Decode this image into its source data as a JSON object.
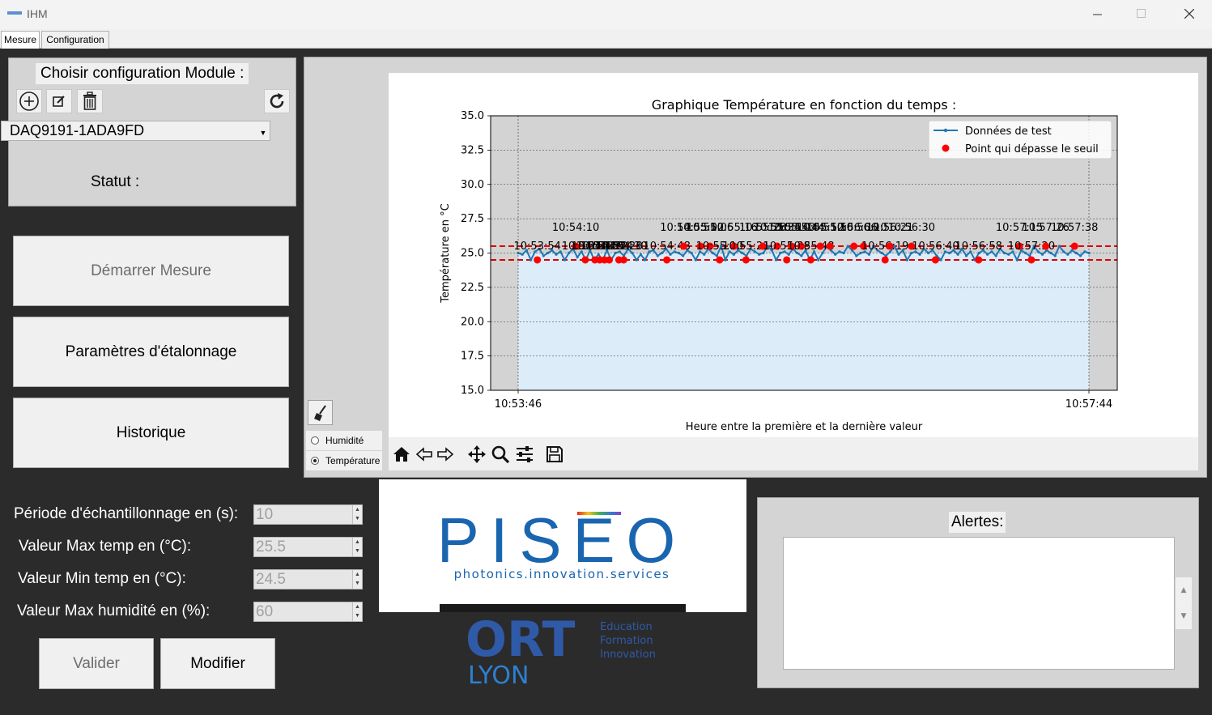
{
  "window": {
    "title": "IHM"
  },
  "tabs": [
    {
      "label": "Mesure"
    },
    {
      "label": "Configuration"
    }
  ],
  "config": {
    "title": "Choisir configuration Module :",
    "selected_module": "DAQ9191-1ADA9FD",
    "status_label": "Statut :"
  },
  "buttons": {
    "start": "Démarrer Mesure",
    "calibration": "Paramètres d'étalonnage",
    "history": "Historique",
    "validate": "Valider",
    "modify": "Modifier"
  },
  "params": [
    {
      "label": "Période d'échantillonnage en (s):",
      "value": "10"
    },
    {
      "label": "Valeur Max temp en (°C):",
      "value": "25.5"
    },
    {
      "label": "Valeur Min temp en (°C):",
      "value": "24.5"
    },
    {
      "label": "Valeur Max humidité en (%):",
      "value": "60"
    }
  ],
  "radios": [
    {
      "label": "Humidité",
      "checked": false
    },
    {
      "label": "Température",
      "checked": true
    }
  ],
  "alerts": {
    "title": "Alertes:",
    "text": ""
  },
  "logos": {
    "piseo_name": "PISEO",
    "piseo_tagline": "photonics.innovation.services",
    "ort_name": "ORT",
    "ort_city": "LYON",
    "ort_line1": "Education",
    "ort_line2": "Formation",
    "ort_line3": "Innovation"
  },
  "colors": {
    "series": "#1f77b4",
    "exceed": "#ff0000",
    "threshold": "#e00000",
    "fill": "#dcecf9",
    "piseo_blue": "#1a65b0",
    "ort_blue": "#2f5aa8"
  },
  "chart_data": {
    "type": "line",
    "title": "Graphique Température en fonction du temps :",
    "xlabel": "Heure entre la première et la dernière valeur",
    "ylabel": "Température en °C",
    "ylim": [
      15.0,
      35.0
    ],
    "xlim": [
      "10:53:46",
      "10:57:44"
    ],
    "x_tick_labels": [
      "10:53:46",
      "10:57:44"
    ],
    "y_ticks": [
      15.0,
      17.5,
      20.0,
      22.5,
      25.0,
      27.5,
      30.0,
      32.5,
      35.0
    ],
    "y_tick_labels": [
      "15.0",
      "17.5",
      "20.0",
      "22.5",
      "25.0",
      "27.5",
      "30.0",
      "32.5",
      "35.0"
    ],
    "grid": true,
    "legend_position": "top-right",
    "thresholds": [
      25.5,
      24.5
    ],
    "series": [
      {
        "name": "Données de test",
        "values": [
          25.0,
          24.9,
          25.2,
          24.5,
          25.1,
          25.3,
          24.8,
          25.0,
          25.2,
          24.9,
          25.1,
          24.5,
          25.0,
          25.3,
          24.7,
          25.1,
          24.5,
          25.2,
          24.5,
          24.9,
          24.5,
          25.2,
          24.5,
          25.0,
          25.1,
          24.8,
          25.3,
          25.0,
          24.5,
          24.9,
          24.5,
          25.1,
          25.2,
          24.8,
          25.0,
          25.3,
          24.9,
          25.1,
          25.0,
          24.8,
          25.2,
          25.0,
          24.5,
          25.1,
          24.9,
          25.3,
          25.0,
          24.8,
          25.5,
          24.5,
          25.1,
          24.9,
          25.2,
          25.0,
          24.8,
          25.3,
          25.1,
          24.9,
          25.0,
          25.5,
          25.2,
          24.5,
          25.0,
          25.1,
          24.9,
          25.3,
          25.0,
          24.8,
          25.2,
          24.5,
          25.1,
          24.5,
          25.0,
          25.5,
          25.2,
          24.9,
          25.1,
          25.0,
          25.5,
          25.2,
          24.8,
          25.0,
          25.1,
          24.9,
          25.5,
          25.2,
          25.0,
          24.8,
          25.1,
          25.5,
          24.9,
          25.2,
          24.5,
          25.0,
          25.1,
          24.9,
          25.3,
          25.0,
          25.2,
          24.8,
          24.5,
          25.1,
          25.0,
          25.2,
          24.9,
          25.3,
          24.8,
          25.1,
          24.5,
          25.0,
          25.2,
          24.9,
          25.1,
          24.8,
          25.3,
          25.0,
          24.9,
          25.1,
          24.5,
          25.2,
          25.0,
          24.8,
          25.5,
          25.1,
          24.9,
          25.2,
          25.0,
          24.8,
          25.5,
          25.1,
          24.9,
          25.2,
          25.0,
          24.8,
          25.1,
          25.0
        ],
        "x_start": "10:53:46",
        "x_end": "10:57:44"
      }
    ],
    "exceed_points": {
      "name": "Point qui dépasse le seuil",
      "times": [
        "10:53:54",
        "10:54:10",
        "10:54:14",
        "10:54:18",
        "10:54:20",
        "10:54:22",
        "10:54:24",
        "10:54:28",
        "10:54:30",
        "10:54:48",
        "10:54:55",
        "10:55:02",
        "10:55:06",
        "10:55:10",
        "10:55:16",
        "10:55:21",
        "10:55:28",
        "10:55:34",
        "10:55:38",
        "10:55:40",
        "10:55:44",
        "10:55:48",
        "10:55:52",
        "10:55:56",
        "10:56:06",
        "10:56:10",
        "10:56:19",
        "10:56:21",
        "10:56:30",
        "10:56:40",
        "10:56:58",
        "10:57:15",
        "10:57:20",
        "10:57:26",
        "10:57:38"
      ],
      "values": [
        24.5,
        25.5,
        24.5,
        24.5,
        24.5,
        24.5,
        24.5,
        24.5,
        24.5,
        24.5,
        25.5,
        25.5,
        25.5,
        24.5,
        25.5,
        24.5,
        25.5,
        25.5,
        24.5,
        25.5,
        25.5,
        24.5,
        25.5,
        25.5,
        25.5,
        25.5,
        24.5,
        25.5,
        25.5,
        24.5,
        24.5,
        25.5,
        24.5,
        25.5,
        25.5
      ]
    }
  }
}
